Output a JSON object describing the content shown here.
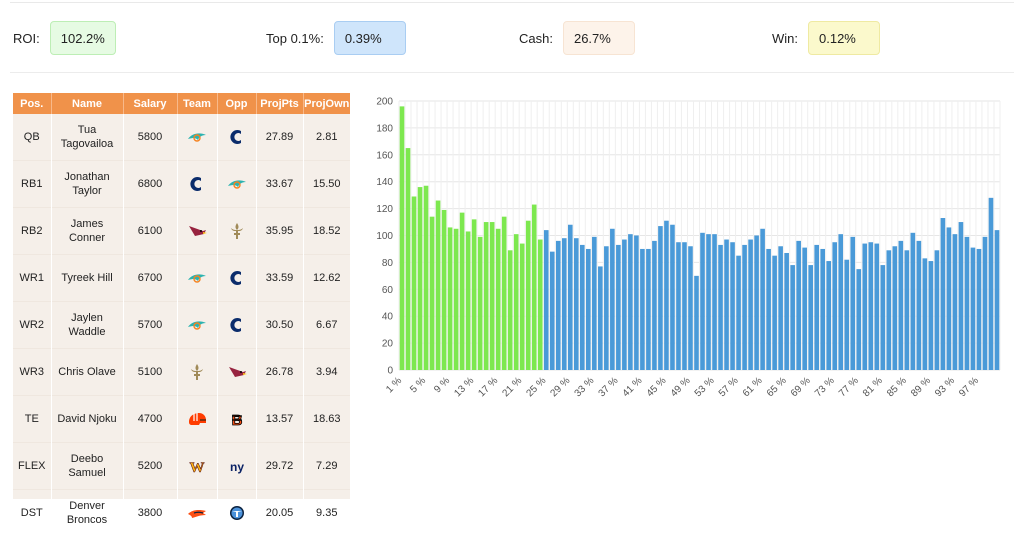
{
  "stats": [
    {
      "label": "ROI:",
      "value": "102.2%",
      "bg": "#e6fbe3",
      "border": "#bdeeb5"
    },
    {
      "label": "Top 0.1%:",
      "value": "0.39%",
      "bg": "#cfe5fb",
      "border": "#a9cdf2"
    },
    {
      "label": "Cash:",
      "value": "26.7%",
      "bg": "#fdf3ea",
      "border": "#f7e4d3"
    },
    {
      "label": "Win:",
      "value": "0.12%",
      "bg": "#fbf9cc",
      "border": "#efeaa2"
    }
  ],
  "table": {
    "headers": [
      "Pos.",
      "Name",
      "Salary",
      "Team",
      "Opp",
      "ProjPts",
      "ProjOwn"
    ],
    "rows": [
      {
        "pos": "QB",
        "name": "Tua Tagovailoa",
        "salary": "5800",
        "team": "dolphins-logo",
        "opp": "colts-logo",
        "pts": "27.89",
        "own": "2.81"
      },
      {
        "pos": "RB1",
        "name": "Jonathan Taylor",
        "salary": "6800",
        "team": "colts-logo",
        "opp": "dolphins-logo",
        "pts": "33.67",
        "own": "15.50"
      },
      {
        "pos": "RB2",
        "name": "James Conner",
        "salary": "6100",
        "team": "cardinals-logo",
        "opp": "saints-logo",
        "pts": "35.95",
        "own": "18.52"
      },
      {
        "pos": "WR1",
        "name": "Tyreek Hill",
        "salary": "6700",
        "team": "dolphins-logo",
        "opp": "colts-logo",
        "pts": "33.59",
        "own": "12.62"
      },
      {
        "pos": "WR2",
        "name": "Jaylen Waddle",
        "salary": "5700",
        "team": "dolphins-logo",
        "opp": "colts-logo",
        "pts": "30.50",
        "own": "6.67"
      },
      {
        "pos": "WR3",
        "name": "Chris Olave",
        "salary": "5100",
        "team": "saints-logo",
        "opp": "cardinals-logo",
        "pts": "26.78",
        "own": "3.94"
      },
      {
        "pos": "TE",
        "name": "David Njoku",
        "salary": "4700",
        "team": "browns-logo",
        "opp": "bengals-logo",
        "pts": "13.57",
        "own": "18.63"
      },
      {
        "pos": "FLEX",
        "name": "Deebo Samuel",
        "salary": "5200",
        "team": "commanders-logo",
        "opp": "giants-logo",
        "pts": "29.72",
        "own": "7.29"
      },
      {
        "pos": "DST",
        "name": "Denver Broncos",
        "salary": "3800",
        "team": "broncos-logo",
        "opp": "titans-logo",
        "pts": "20.05",
        "own": "9.35"
      }
    ]
  },
  "chart_data": {
    "type": "bar",
    "title": "",
    "xlabel": "",
    "ylabel": "",
    "ylim": [
      0,
      200
    ],
    "yticks": [
      0,
      20,
      40,
      60,
      80,
      100,
      120,
      140,
      160,
      180,
      200
    ],
    "grid": true,
    "colors": {
      "green": "#7de84f",
      "blue": "#4a9ad8"
    },
    "green_count": 24,
    "categories": [
      "1 %",
      "2 %",
      "3 %",
      "4 %",
      "5 %",
      "6 %",
      "7 %",
      "8 %",
      "9 %",
      "10 %",
      "11 %",
      "12 %",
      "13 %",
      "14 %",
      "15 %",
      "16 %",
      "17 %",
      "18 %",
      "19 %",
      "20 %",
      "21 %",
      "22 %",
      "23 %",
      "24 %",
      "25 %",
      "26 %",
      "27 %",
      "28 %",
      "29 %",
      "30 %",
      "31 %",
      "32 %",
      "33 %",
      "34 %",
      "35 %",
      "36 %",
      "37 %",
      "38 %",
      "39 %",
      "40 %",
      "41 %",
      "42 %",
      "43 %",
      "44 %",
      "45 %",
      "46 %",
      "47 %",
      "48 %",
      "49 %",
      "50 %",
      "51 %",
      "52 %",
      "53 %",
      "54 %",
      "55 %",
      "56 %",
      "57 %",
      "58 %",
      "59 %",
      "60 %",
      "61 %",
      "62 %",
      "63 %",
      "64 %",
      "65 %",
      "66 %",
      "67 %",
      "68 %",
      "69 %",
      "70 %",
      "71 %",
      "72 %",
      "73 %",
      "74 %",
      "75 %",
      "76 %",
      "77 %",
      "78 %",
      "79 %",
      "80 %",
      "81 %",
      "82 %",
      "83 %",
      "84 %",
      "85 %",
      "86 %",
      "87 %",
      "88 %",
      "89 %",
      "90 %",
      "91 %",
      "92 %",
      "93 %",
      "94 %",
      "95 %",
      "96 %",
      "97 %",
      "98 %",
      "99 %",
      "100 %"
    ],
    "xticks_shown": [
      "1 %",
      "5 %",
      "9 %",
      "13 %",
      "17 %",
      "21 %",
      "25 %",
      "29 %",
      "33 %",
      "37 %",
      "41 %",
      "45 %",
      "49 %",
      "53 %",
      "57 %",
      "61 %",
      "65 %",
      "69 %",
      "73 %",
      "77 %",
      "81 %",
      "85 %",
      "89 %",
      "93 %",
      "97 %"
    ],
    "values": [
      196,
      165,
      129,
      136,
      137,
      114,
      126,
      119,
      106,
      105,
      117,
      103,
      112,
      99,
      110,
      110,
      105,
      114,
      89,
      101,
      94,
      111,
      123,
      97,
      104,
      88,
      96,
      98,
      108,
      98,
      93,
      90,
      99,
      77,
      92,
      105,
      93,
      97,
      101,
      100,
      90,
      90,
      96,
      107,
      111,
      108,
      95,
      95,
      92,
      70,
      102,
      101,
      101,
      93,
      97,
      95,
      85,
      93,
      97,
      100,
      105,
      90,
      85,
      92,
      87,
      78,
      96,
      91,
      78,
      93,
      90,
      81,
      95,
      101,
      82,
      99,
      75,
      94,
      95,
      94,
      78,
      89,
      92,
      96,
      89,
      102,
      96,
      83,
      81,
      89,
      113,
      106,
      101,
      110,
      99,
      91,
      90,
      99,
      128,
      104
    ]
  }
}
